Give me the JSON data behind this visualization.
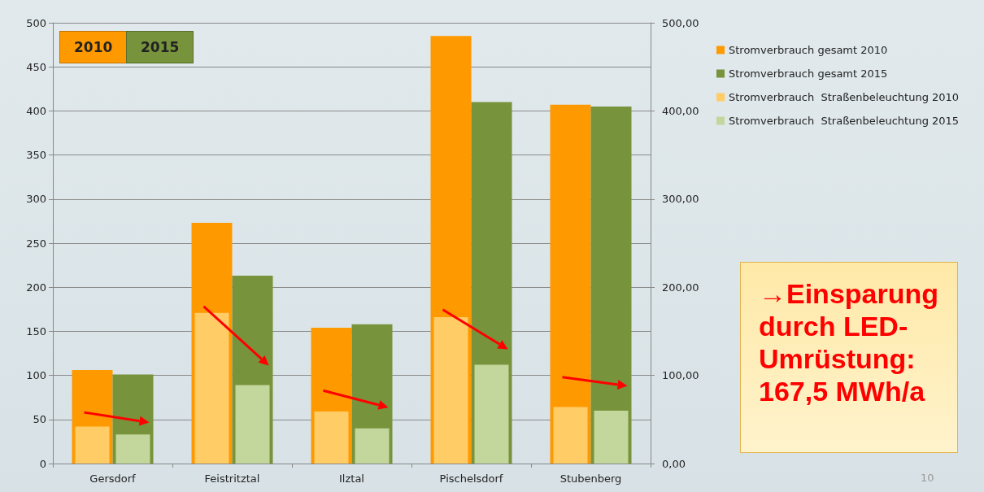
{
  "chart_data": {
    "type": "bar",
    "categories": [
      "Gersdorf",
      "Feistritztal",
      "Ilztal",
      "Pischelsdorf",
      "Stubenberg"
    ],
    "series": [
      {
        "name": "Stromverbrauch gesamt 2010",
        "color": "#ff9900",
        "values": [
          106,
          273,
          154,
          485,
          407
        ]
      },
      {
        "name": "Stromverbrauch gesamt 2015",
        "color": "#77933c",
        "values": [
          101,
          213,
          158,
          410,
          405
        ]
      },
      {
        "name": "Stromverbrauch  Straßenbeleuchtung 2010",
        "color": "#ffcc66",
        "values": [
          42,
          171,
          59,
          166,
          64
        ]
      },
      {
        "name": "Stromverbrauch  Straßenbeleuchtung 2015",
        "color": "#c3d69b",
        "values": [
          33,
          89,
          40,
          112,
          60
        ]
      }
    ],
    "ylim": [
      0,
      500
    ],
    "yticks": [
      0,
      50,
      100,
      150,
      200,
      250,
      300,
      350,
      400,
      450,
      500
    ],
    "y2lim": [
      0,
      500
    ],
    "y2ticks": [
      {
        "value": 0,
        "label": "0,00"
      },
      {
        "value": 100,
        "label": "100,00"
      },
      {
        "value": 200,
        "label": "200,00"
      },
      {
        "value": 300,
        "label": "300,00"
      },
      {
        "value": 400,
        "label": "400,00"
      },
      {
        "value": 500,
        "label": "500,00"
      }
    ],
    "grid": "y",
    "legend": "right",
    "annotations": [
      "2010",
      "2015",
      "→Einsparung durch LED-Umrüstung: 167,5 MWh/a",
      "10"
    ]
  }
}
